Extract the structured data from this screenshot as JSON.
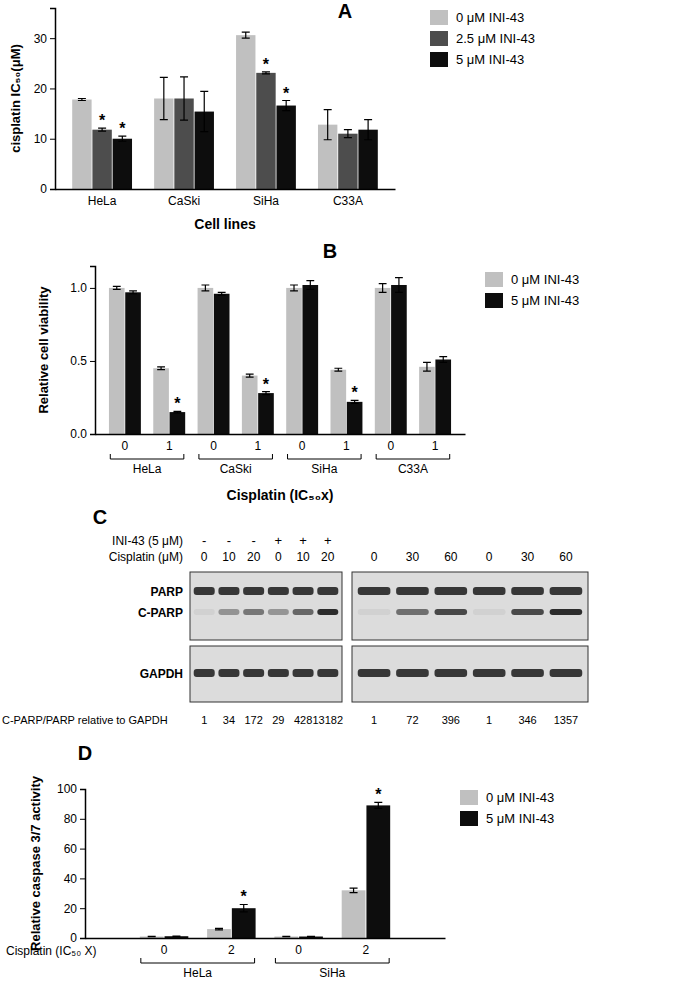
{
  "chart_data": [
    {
      "type": "bar",
      "title": "A",
      "x_label": "Cell lines",
      "y_label": "cisplatin IC₅₀(μM)",
      "categories": [
        "HeLa",
        "CaSki",
        "SiHa",
        "C33A"
      ],
      "ylim": [
        0,
        36
      ],
      "yticks": [
        0,
        10,
        20,
        30
      ],
      "legend": "right",
      "series": [
        {
          "name": "0 μM INI-43",
          "color": "#c0c0c0",
          "values": [
            17.8,
            18,
            30.6,
            12.8
          ],
          "errors": [
            0.2,
            4.2,
            0.6,
            3
          ],
          "annotations": [
            null,
            null,
            null,
            null
          ]
        },
        {
          "name": "2.5 μM INI-43",
          "color": "#4d4d4d",
          "values": [
            11.8,
            18,
            23.1,
            11
          ],
          "errors": [
            0.3,
            4.3,
            0.2,
            0.8
          ],
          "annotations": [
            "*",
            null,
            "*",
            null
          ]
        },
        {
          "name": "5 μM INI-43",
          "color": "#0d0d0d",
          "values": [
            10,
            15.4,
            16.6,
            11.8
          ],
          "errors": [
            0.5,
            4,
            1,
            2
          ],
          "annotations": [
            "*",
            null,
            "*",
            null
          ]
        }
      ]
    },
    {
      "type": "bar",
      "title": "B",
      "x_label": "Cisplatin (IC₅₀x)",
      "y_label": "Relative cell viability",
      "categories": [
        "0",
        "1",
        "0",
        "1",
        "0",
        "1",
        "0",
        "1"
      ],
      "groups": [
        "HeLa",
        "CaSki",
        "SiHa",
        "C33A"
      ],
      "ylim": [
        0,
        1.15
      ],
      "yticks": [
        {
          "value": 0,
          "label": "0.0"
        },
        0.5,
        {
          "value": 1,
          "label": "1.0"
        }
      ],
      "legend": "right",
      "series": [
        {
          "name": "0 μM INI-43",
          "color": "#c0c0c0",
          "values": [
            1,
            0.45,
            1,
            0.4,
            1,
            0.44,
            1,
            0.46
          ],
          "errors": [
            0.01,
            0.01,
            0.02,
            0.01,
            0.02,
            0.01,
            0.03,
            0.03
          ],
          "annotations": [
            null,
            null,
            null,
            null,
            null,
            null,
            null,
            null
          ]
        },
        {
          "name": "5 μM INI-43",
          "color": "#0d0d0d",
          "values": [
            0.97,
            0.15,
            0.96,
            0.28,
            1.02,
            0.22,
            1.02,
            0.51
          ],
          "errors": [
            0.01,
            0.005,
            0.01,
            0.01,
            0.03,
            0.01,
            0.05,
            0.02
          ],
          "annotations": [
            null,
            "*",
            null,
            "*",
            null,
            "*",
            null,
            null
          ]
        }
      ]
    },
    {
      "type": "bar",
      "title": "D",
      "x_label": "Cisplatin (IC₅₀ X)",
      "y_label": "Relative caspase 3/7 activity",
      "categories": [
        "0",
        "2",
        "0",
        "2"
      ],
      "groups": [
        "HeLa",
        "SiHa"
      ],
      "ylim": [
        0,
        100
      ],
      "yticks": [
        0,
        20,
        40,
        60,
        80,
        100
      ],
      "legend": "right",
      "series": [
        {
          "name": "0 μM INI-43",
          "color": "#c0c0c0",
          "values": [
            1,
            6,
            1,
            32
          ],
          "errors": [
            0.1,
            0.5,
            0.1,
            1.5
          ],
          "annotations": [
            null,
            null,
            null,
            null
          ]
        },
        {
          "name": "5 μM INI-43",
          "color": "#0d0d0d",
          "values": [
            1.2,
            20,
            1,
            89
          ],
          "errors": [
            0.1,
            2.5,
            0.1,
            2
          ],
          "annotations": [
            null,
            "*",
            null,
            "*"
          ]
        }
      ]
    }
  ],
  "blot": {
    "title": "C",
    "treatments": [
      "INI-43 (5 μM)",
      "Cisplatin (μM)"
    ],
    "rows": [
      "PARP",
      "C-PARP",
      "GAPDH"
    ],
    "quantification_label": "C-PARP/PARP relative to GAPDH",
    "panels": [
      {
        "ini43": [
          "-",
          "-",
          "-",
          "+",
          "+",
          "+"
        ],
        "cisplatin": [
          0,
          10,
          20,
          0,
          10,
          20
        ],
        "quantification": [
          1,
          34,
          172,
          29,
          428,
          13182
        ]
      },
      {
        "cisplatin": [
          0,
          30,
          60,
          0,
          30,
          60
        ],
        "quantification": [
          1,
          72,
          396,
          1,
          346,
          1357
        ]
      }
    ]
  }
}
